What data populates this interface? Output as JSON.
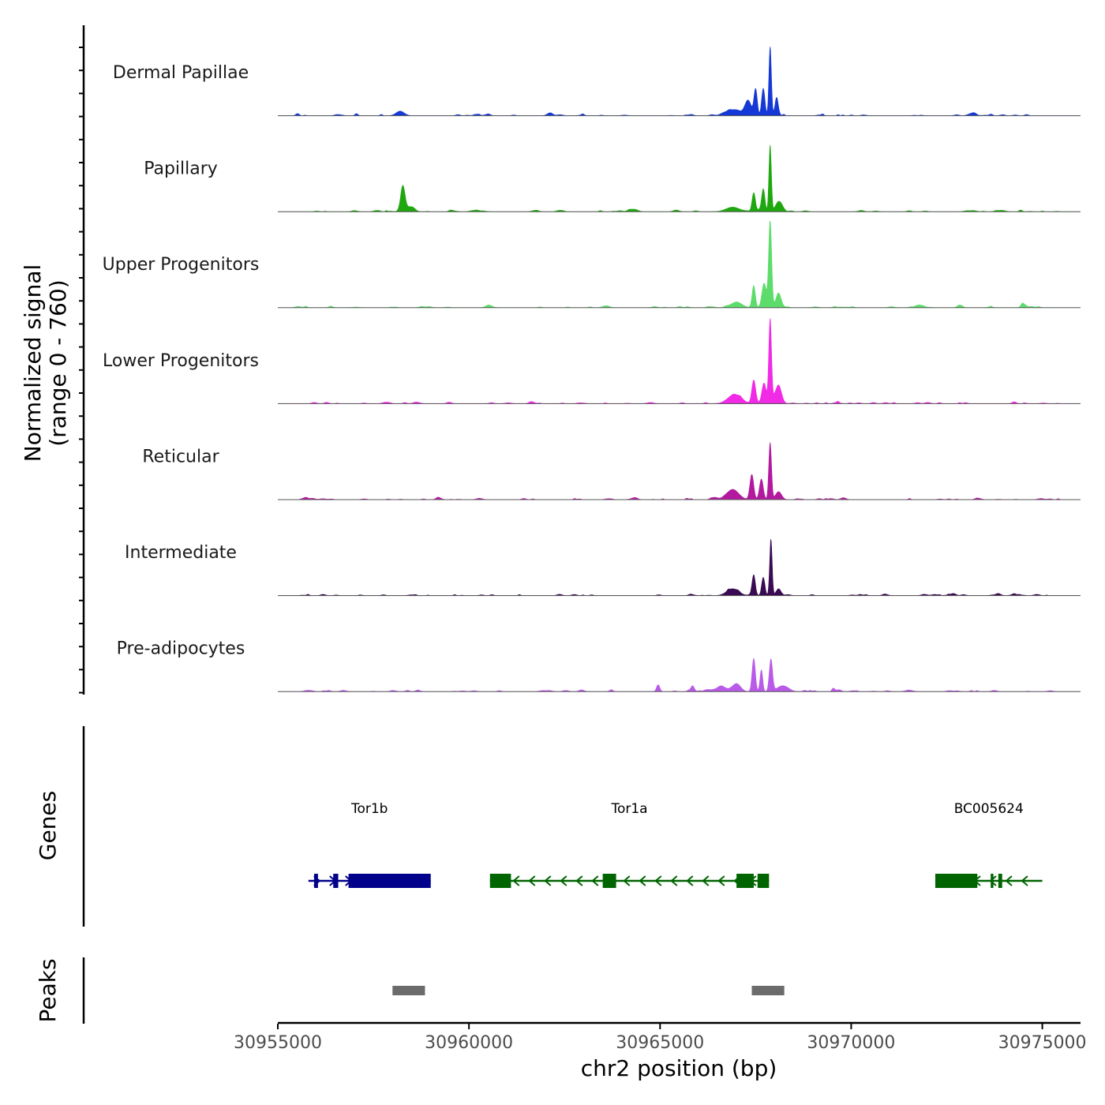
{
  "chart_data": {
    "type": "area",
    "title": "",
    "ylabel": "Normalized signal",
    "ylabel_range": "(range 0 - 760)",
    "xlabel": "chr2 position (bp)",
    "chromosome": "chr2",
    "xlim": [
      30955000,
      30976000
    ],
    "ylim": [
      0,
      760
    ],
    "x_ticks": [
      30955000,
      30960000,
      30965000,
      30970000,
      30975000
    ],
    "x_tick_labels": [
      "30955000",
      "30960000",
      "30965000",
      "30970000",
      "30975000"
    ],
    "series": [
      {
        "name": "Dermal Papillae",
        "color": "#1538d6",
        "peaks": [
          {
            "pos": 30958200,
            "height": 40,
            "width": 150
          },
          {
            "pos": 30966900,
            "height": 50,
            "width": 250
          },
          {
            "pos": 30967300,
            "height": 130,
            "width": 120
          },
          {
            "pos": 30967500,
            "height": 230,
            "width": 60
          },
          {
            "pos": 30967700,
            "height": 240,
            "width": 60
          },
          {
            "pos": 30967880,
            "height": 600,
            "width": 45
          },
          {
            "pos": 30968050,
            "height": 160,
            "width": 60
          }
        ]
      },
      {
        "name": "Papillary",
        "color": "#1fa70f",
        "peaks": [
          {
            "pos": 30958270,
            "height": 220,
            "width": 80
          },
          {
            "pos": 30958450,
            "height": 40,
            "width": 150
          },
          {
            "pos": 30966900,
            "height": 40,
            "width": 250
          },
          {
            "pos": 30967450,
            "height": 160,
            "width": 60
          },
          {
            "pos": 30967700,
            "height": 200,
            "width": 60
          },
          {
            "pos": 30967880,
            "height": 580,
            "width": 45
          },
          {
            "pos": 30968100,
            "height": 80,
            "width": 120
          }
        ]
      },
      {
        "name": "Upper Progenitors",
        "color": "#5ddc6b",
        "peaks": [
          {
            "pos": 30967000,
            "height": 50,
            "width": 200
          },
          {
            "pos": 30967450,
            "height": 190,
            "width": 60
          },
          {
            "pos": 30967720,
            "height": 200,
            "width": 80
          },
          {
            "pos": 30967880,
            "height": 760,
            "width": 55
          },
          {
            "pos": 30968100,
            "height": 120,
            "width": 100
          },
          {
            "pos": 30974500,
            "height": 30,
            "width": 80
          }
        ]
      },
      {
        "name": "Lower Progenitors",
        "color": "#f12ae6",
        "peaks": [
          {
            "pos": 30966950,
            "height": 80,
            "width": 250
          },
          {
            "pos": 30967450,
            "height": 200,
            "width": 70
          },
          {
            "pos": 30967720,
            "height": 180,
            "width": 80
          },
          {
            "pos": 30967880,
            "height": 730,
            "width": 50
          },
          {
            "pos": 30968100,
            "height": 150,
            "width": 110
          }
        ]
      },
      {
        "name": "Reticular",
        "color": "#b3199e",
        "peaks": [
          {
            "pos": 30966900,
            "height": 90,
            "width": 220
          },
          {
            "pos": 30967400,
            "height": 220,
            "width": 70
          },
          {
            "pos": 30967650,
            "height": 180,
            "width": 70
          },
          {
            "pos": 30967880,
            "height": 490,
            "width": 50
          },
          {
            "pos": 30968100,
            "height": 70,
            "width": 110
          }
        ]
      },
      {
        "name": "Intermediate",
        "color": "#3a0a52",
        "peaks": [
          {
            "pos": 30966900,
            "height": 60,
            "width": 220
          },
          {
            "pos": 30967450,
            "height": 180,
            "width": 60
          },
          {
            "pos": 30967700,
            "height": 160,
            "width": 60
          },
          {
            "pos": 30967900,
            "height": 490,
            "width": 45
          },
          {
            "pos": 30968100,
            "height": 60,
            "width": 90
          }
        ]
      },
      {
        "name": "Pre-adipocytes",
        "color": "#b95ae9",
        "peaks": [
          {
            "pos": 30964950,
            "height": 60,
            "width": 60
          },
          {
            "pos": 30965850,
            "height": 50,
            "width": 60
          },
          {
            "pos": 30966600,
            "height": 50,
            "width": 150
          },
          {
            "pos": 30967000,
            "height": 70,
            "width": 150
          },
          {
            "pos": 30967450,
            "height": 290,
            "width": 60
          },
          {
            "pos": 30967650,
            "height": 190,
            "width": 50
          },
          {
            "pos": 30967900,
            "height": 280,
            "width": 60
          },
          {
            "pos": 30968200,
            "height": 50,
            "width": 200
          }
        ]
      }
    ],
    "genes_track_label": "Genes",
    "genes": [
      {
        "name": "Tor1b",
        "color": "#00008b",
        "strand": "+",
        "start": 30955800,
        "end": 30959000,
        "exons": [
          [
            30955950,
            30956050
          ],
          [
            30956450,
            30956580
          ],
          [
            30956850,
            30959000
          ]
        ]
      },
      {
        "name": "Tor1a",
        "color": "#006400",
        "strand": "-",
        "start": 30960550,
        "end": 30967850,
        "exons": [
          [
            30960550,
            30961100
          ],
          [
            30963500,
            30963850
          ],
          [
            30967000,
            30967450
          ],
          [
            30967550,
            30967850
          ]
        ]
      },
      {
        "name": "BC005624",
        "color": "#006400",
        "strand": "-",
        "start": 30972200,
        "end": 30975000,
        "exons": [
          [
            30972200,
            30973300
          ],
          [
            30973650,
            30973720
          ],
          [
            30973850,
            30973950
          ]
        ]
      }
    ],
    "peaks_track_label": "Peaks",
    "peak_regions": [
      [
        30958000,
        30958850
      ],
      [
        30967400,
        30968250
      ]
    ],
    "peak_color": "#6b6b6b"
  }
}
